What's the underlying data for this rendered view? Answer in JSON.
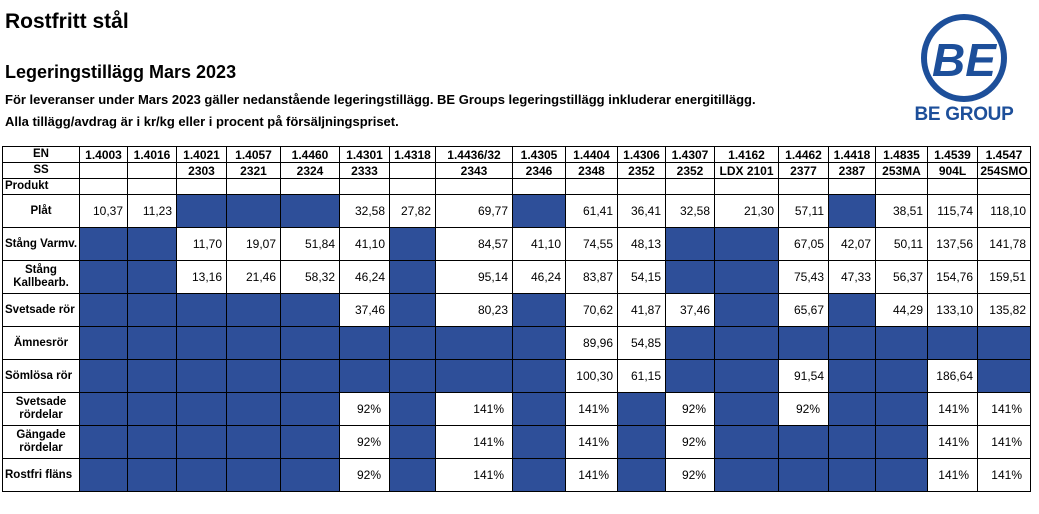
{
  "header": {
    "title": "Rostfritt stål",
    "subtitle": "Legeringstillägg Mars 2023",
    "note1": "För leveranser under Mars 2023 gäller nedanstående legeringstillägg. BE Groups legeringstillägg inkluderar energitillägg.",
    "note2": "Alla tillägg/avdrag är i kr/kg eller i procent på försäljningspriset."
  },
  "logo": {
    "mark": "BE",
    "name": "BE GROUP",
    "color": "#1d4f9a"
  },
  "colors": {
    "filled_cell": "#2e4f99"
  },
  "table": {
    "en_label": "EN",
    "ss_label": "SS",
    "product_label": "Produkt",
    "en": [
      "1.4003",
      "1.4016",
      "1.4021",
      "1.4057",
      "1.4460",
      "1.4301",
      "1.4318",
      "1.4436/32",
      "1.4305",
      "1.4404",
      "1.4306",
      "1.4307",
      "1.4162",
      "1.4462",
      "1.4418",
      "1.4835",
      "1.4539",
      "1.4547"
    ],
    "ss": [
      "",
      "",
      "2303",
      "2321",
      "2324",
      "2333",
      "",
      "2343",
      "2346",
      "2348",
      "2352",
      "2352",
      "LDX 2101",
      "2377",
      "2387",
      "253MA",
      "904L",
      "254SMO"
    ],
    "rows": [
      {
        "label": "Plåt",
        "cells": [
          "10,37",
          "11,23",
          null,
          null,
          null,
          "32,58",
          "27,82",
          "69,77",
          null,
          "61,41",
          "36,41",
          "32,58",
          "21,30",
          "57,11",
          null,
          "38,51",
          "115,74",
          "118,10"
        ]
      },
      {
        "label": "Stång Varmv.",
        "cells": [
          null,
          null,
          "11,70",
          "19,07",
          "51,84",
          "41,10",
          null,
          "84,57",
          "41,10",
          "74,55",
          "48,13",
          null,
          null,
          "67,05",
          "42,07",
          "50,11",
          "137,56",
          "141,78"
        ]
      },
      {
        "label": "Stång Kallbearb.",
        "cells": [
          null,
          null,
          "13,16",
          "21,46",
          "58,32",
          "46,24",
          null,
          "95,14",
          "46,24",
          "83,87",
          "54,15",
          null,
          null,
          "75,43",
          "47,33",
          "56,37",
          "154,76",
          "159,51"
        ]
      },
      {
        "label": "Svetsade rör",
        "cells": [
          null,
          null,
          null,
          null,
          null,
          "37,46",
          null,
          "80,23",
          null,
          "70,62",
          "41,87",
          "37,46",
          null,
          "65,67",
          null,
          "44,29",
          "133,10",
          "135,82"
        ]
      },
      {
        "label": "Ämnesrör",
        "cells": [
          null,
          null,
          null,
          null,
          null,
          null,
          null,
          null,
          null,
          "89,96",
          "54,85",
          null,
          null,
          null,
          null,
          null,
          null,
          null
        ]
      },
      {
        "label": "Sömlösa rör",
        "cells": [
          null,
          null,
          null,
          null,
          null,
          null,
          null,
          null,
          null,
          "100,30",
          "61,15",
          null,
          null,
          "91,54",
          null,
          null,
          "186,64",
          null
        ]
      },
      {
        "label": "Svetsade rördelar",
        "cells": [
          null,
          null,
          null,
          null,
          null,
          "92%",
          null,
          "141%",
          null,
          "141%",
          null,
          "92%",
          null,
          "92%",
          null,
          null,
          "141%",
          "141%"
        ]
      },
      {
        "label": "Gängade rördelar",
        "cells": [
          null,
          null,
          null,
          null,
          null,
          "92%",
          null,
          "141%",
          null,
          "141%",
          null,
          "92%",
          null,
          null,
          null,
          null,
          "141%",
          "141%"
        ]
      },
      {
        "label": "Rostfri fläns",
        "cells": [
          null,
          null,
          null,
          null,
          null,
          "92%",
          null,
          "141%",
          null,
          "141%",
          null,
          "92%",
          null,
          null,
          null,
          null,
          "141%",
          "141%"
        ]
      }
    ]
  }
}
